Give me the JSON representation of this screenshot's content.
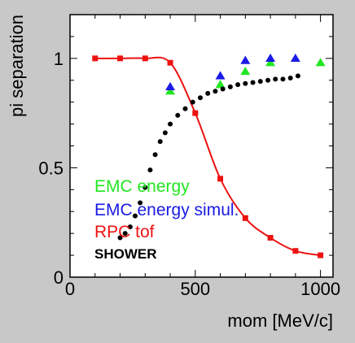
{
  "chart_data": {
    "type": "scatter",
    "xlabel": "mom [MeV/c]",
    "ylabel": "pi separation",
    "xlim": [
      0,
      1050
    ],
    "ylim": [
      0,
      1.2
    ],
    "x_ticks": [
      {
        "value": 0,
        "label": "0"
      },
      {
        "value": 500,
        "label": "500"
      },
      {
        "value": 1000,
        "label": "1000"
      }
    ],
    "y_ticks": [
      {
        "value": 0,
        "label": "0"
      },
      {
        "value": 0.5,
        "label": "0.5"
      },
      {
        "value": 1,
        "label": "1"
      }
    ],
    "grid": false,
    "legend_position": "bottom-left",
    "series": [
      {
        "name": "EMC energy",
        "color": "#22e622",
        "marker": "triangle",
        "x": [
          400,
          600,
          700,
          800,
          1000
        ],
        "y": [
          0.85,
          0.88,
          0.94,
          0.98,
          0.98
        ]
      },
      {
        "name": "EMC energy simul.",
        "color": "#1a1ae6",
        "marker": "triangle",
        "x": [
          400,
          600,
          700,
          800,
          900
        ],
        "y": [
          0.87,
          0.92,
          0.99,
          1.0,
          1.0
        ]
      },
      {
        "name": "RPC tof",
        "color": "#ee1111",
        "marker": "square",
        "line": true,
        "x": [
          100,
          200,
          300,
          400,
          500,
          600,
          700,
          800,
          900,
          1000
        ],
        "y": [
          1.0,
          1.0,
          1.0,
          0.98,
          0.75,
          0.45,
          0.27,
          0.18,
          0.12,
          0.1
        ]
      },
      {
        "name": "SHOWER",
        "color": "#000000",
        "marker": "dot",
        "x": [
          200,
          220,
          240,
          260,
          280,
          300,
          320,
          340,
          360,
          380,
          400,
          430,
          460,
          490,
          520,
          550,
          580,
          610,
          640,
          670,
          700,
          730,
          760,
          790,
          820,
          850,
          880,
          910
        ],
        "y": [
          0.18,
          0.2,
          0.23,
          0.28,
          0.34,
          0.41,
          0.49,
          0.56,
          0.62,
          0.66,
          0.7,
          0.74,
          0.77,
          0.8,
          0.82,
          0.84,
          0.85,
          0.86,
          0.87,
          0.88,
          0.885,
          0.89,
          0.895,
          0.9,
          0.905,
          0.905,
          0.91,
          0.92
        ]
      }
    ]
  }
}
